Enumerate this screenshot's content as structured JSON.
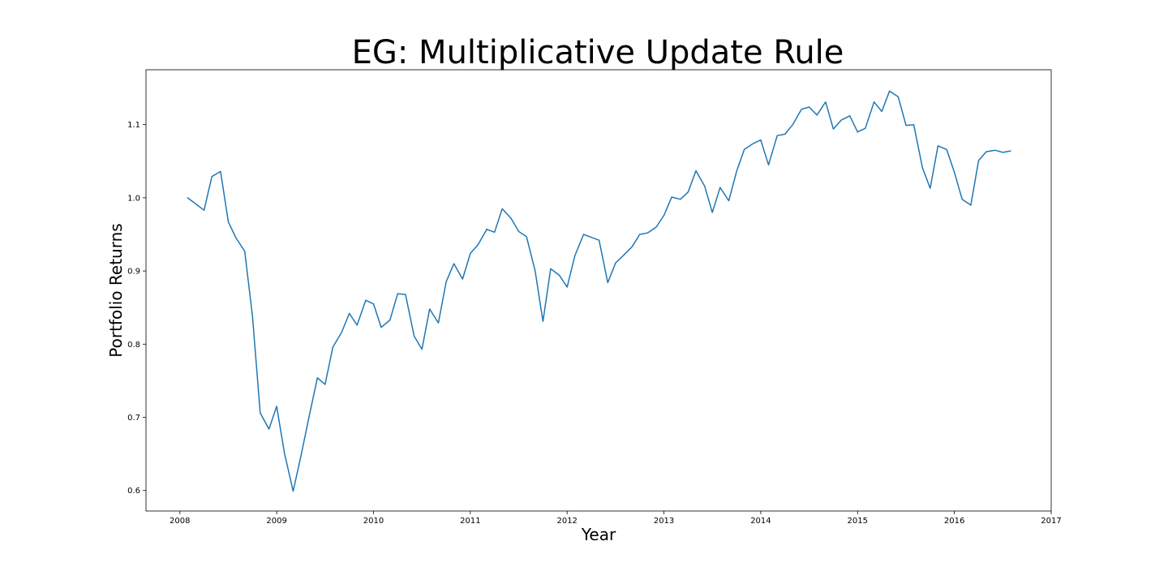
{
  "chart_data": {
    "type": "line",
    "title": "EG: Multiplicative Update Rule",
    "xlabel": "Year",
    "ylabel": "Portfolio Returns",
    "xlim": [
      2007.65,
      2017.0
    ],
    "ylim": [
      0.572,
      1.175
    ],
    "x_ticks": [
      2008,
      2009,
      2010,
      2011,
      2012,
      2013,
      2014,
      2015,
      2016,
      2017
    ],
    "x_tick_labels": [
      "2008",
      "2009",
      "2010",
      "2011",
      "2012",
      "2013",
      "2014",
      "2015",
      "2016",
      "2017"
    ],
    "y_ticks": [
      0.6,
      0.7,
      0.8,
      0.9,
      1.0,
      1.1
    ],
    "y_tick_labels": [
      "0.6",
      "0.7",
      "0.8",
      "0.9",
      "1.0",
      "1.1"
    ],
    "grid": false,
    "legend": "none",
    "colors": {
      "line": "#1f77b4",
      "frame": "#000000"
    },
    "series": [
      {
        "x": [
          2008.08,
          2008.17,
          2008.25,
          2008.33,
          2008.42,
          2008.5,
          2008.58,
          2008.67,
          2008.75,
          2008.83,
          2008.92,
          2009.0,
          2009.08,
          2009.17,
          2009.25,
          2009.33,
          2009.42,
          2009.5,
          2009.58,
          2009.67,
          2009.75,
          2009.83,
          2009.92,
          2010.0,
          2010.08,
          2010.17,
          2010.25,
          2010.33,
          2010.42,
          2010.5,
          2010.58,
          2010.67,
          2010.75,
          2010.83,
          2010.92,
          2011.0,
          2011.08,
          2011.17,
          2011.25,
          2011.33,
          2011.42,
          2011.5,
          2011.58,
          2011.67,
          2011.75,
          2011.83,
          2011.92,
          2012.0,
          2012.08,
          2012.17,
          2012.25,
          2012.33,
          2012.42,
          2012.5,
          2012.58,
          2012.67,
          2012.75,
          2012.83,
          2012.92,
          2013.0,
          2013.08,
          2013.17,
          2013.25,
          2013.33,
          2013.42,
          2013.5,
          2013.58,
          2013.67,
          2013.75,
          2013.83,
          2013.92,
          2014.0,
          2014.08,
          2014.17,
          2014.25,
          2014.33,
          2014.42,
          2014.5,
          2014.58,
          2014.67,
          2014.75,
          2014.83,
          2014.92,
          2015.0,
          2015.08,
          2015.17,
          2015.25,
          2015.33,
          2015.42,
          2015.5,
          2015.58,
          2015.67,
          2015.75,
          2015.83,
          2015.92,
          2016.0,
          2016.08,
          2016.17,
          2016.25,
          2016.33,
          2016.42,
          2016.5,
          2016.58
        ],
        "values": [
          1.0,
          0.991,
          0.983,
          1.029,
          1.036,
          0.967,
          0.945,
          0.927,
          0.838,
          0.706,
          0.684,
          0.715,
          0.651,
          0.599,
          0.647,
          0.698,
          0.754,
          0.745,
          0.796,
          0.816,
          0.842,
          0.826,
          0.86,
          0.855,
          0.823,
          0.833,
          0.869,
          0.868,
          0.811,
          0.793,
          0.848,
          0.829,
          0.885,
          0.91,
          0.889,
          0.924,
          0.936,
          0.957,
          0.953,
          0.985,
          0.972,
          0.954,
          0.947,
          0.9,
          0.831,
          0.903,
          0.894,
          0.878,
          0.921,
          0.95,
          0.946,
          0.942,
          0.884,
          0.911,
          0.921,
          0.933,
          0.95,
          0.952,
          0.96,
          0.976,
          1.001,
          0.998,
          1.008,
          1.037,
          1.016,
          0.98,
          1.014,
          0.996,
          1.036,
          1.066,
          1.074,
          1.079,
          1.045,
          1.085,
          1.087,
          1.1,
          1.121,
          1.124,
          1.113,
          1.131,
          1.094,
          1.106,
          1.112,
          1.09,
          1.095,
          1.131,
          1.118,
          1.146,
          1.138,
          1.099,
          1.1,
          1.041,
          1.013,
          1.071,
          1.066,
          1.035,
          0.998,
          0.99,
          1.051,
          1.063,
          1.065,
          1.062,
          1.064
        ]
      }
    ]
  }
}
